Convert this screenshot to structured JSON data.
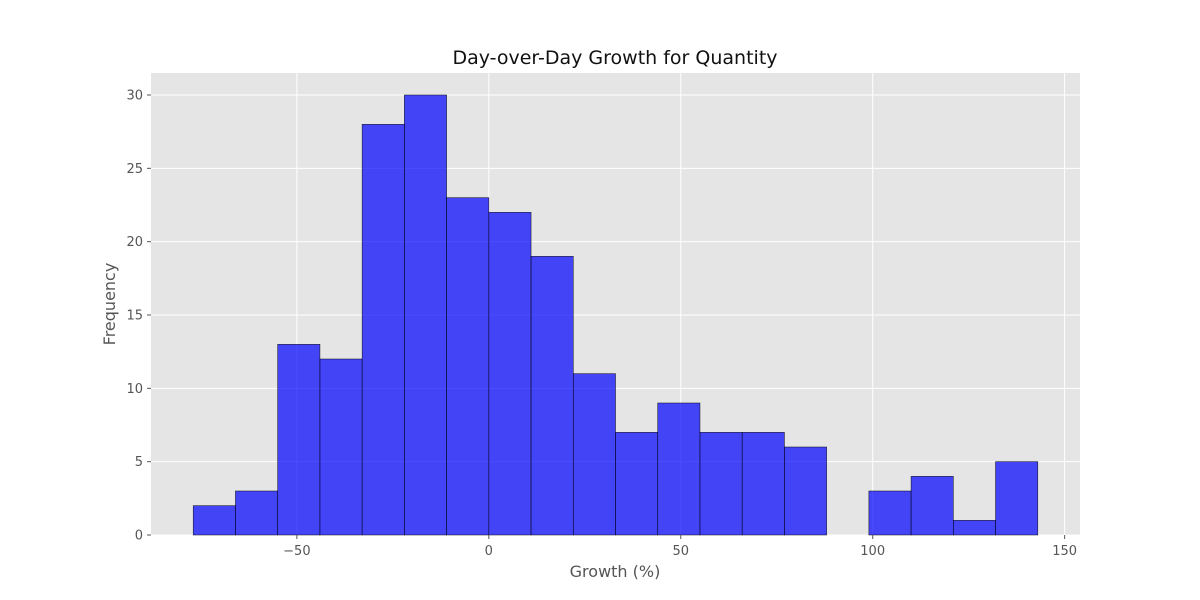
{
  "chart_data": {
    "type": "bar",
    "title": "Day-over-Day Growth for Quantity",
    "xlabel": "Growth (%)",
    "ylabel": "Frequency",
    "xlim": [
      -88,
      154
    ],
    "ylim": [
      0,
      31.5
    ],
    "grid": true,
    "x_ticks": [
      -50,
      0,
      50,
      100,
      150
    ],
    "x_tick_labels": [
      "−50",
      "0",
      "50",
      "100",
      "150"
    ],
    "y_ticks": [
      0,
      5,
      10,
      15,
      20,
      25,
      30
    ],
    "y_tick_labels": [
      "0",
      "5",
      "10",
      "15",
      "20",
      "25",
      "30"
    ],
    "bin_edges": [
      -77,
      -66,
      -55,
      -44,
      -33,
      -22,
      -11,
      0,
      11,
      22,
      33,
      44,
      55,
      66,
      77,
      88,
      99,
      110,
      121,
      132,
      143
    ],
    "values": [
      2,
      3,
      13,
      12,
      28,
      30,
      23,
      22,
      19,
      11,
      7,
      9,
      7,
      7,
      6,
      0,
      3,
      4,
      1,
      5
    ],
    "colors": {
      "bar_fill": "#0000ff",
      "bar_edge": "#000000",
      "plot_background": "#e5e5e5",
      "grid": "#ffffff"
    }
  }
}
